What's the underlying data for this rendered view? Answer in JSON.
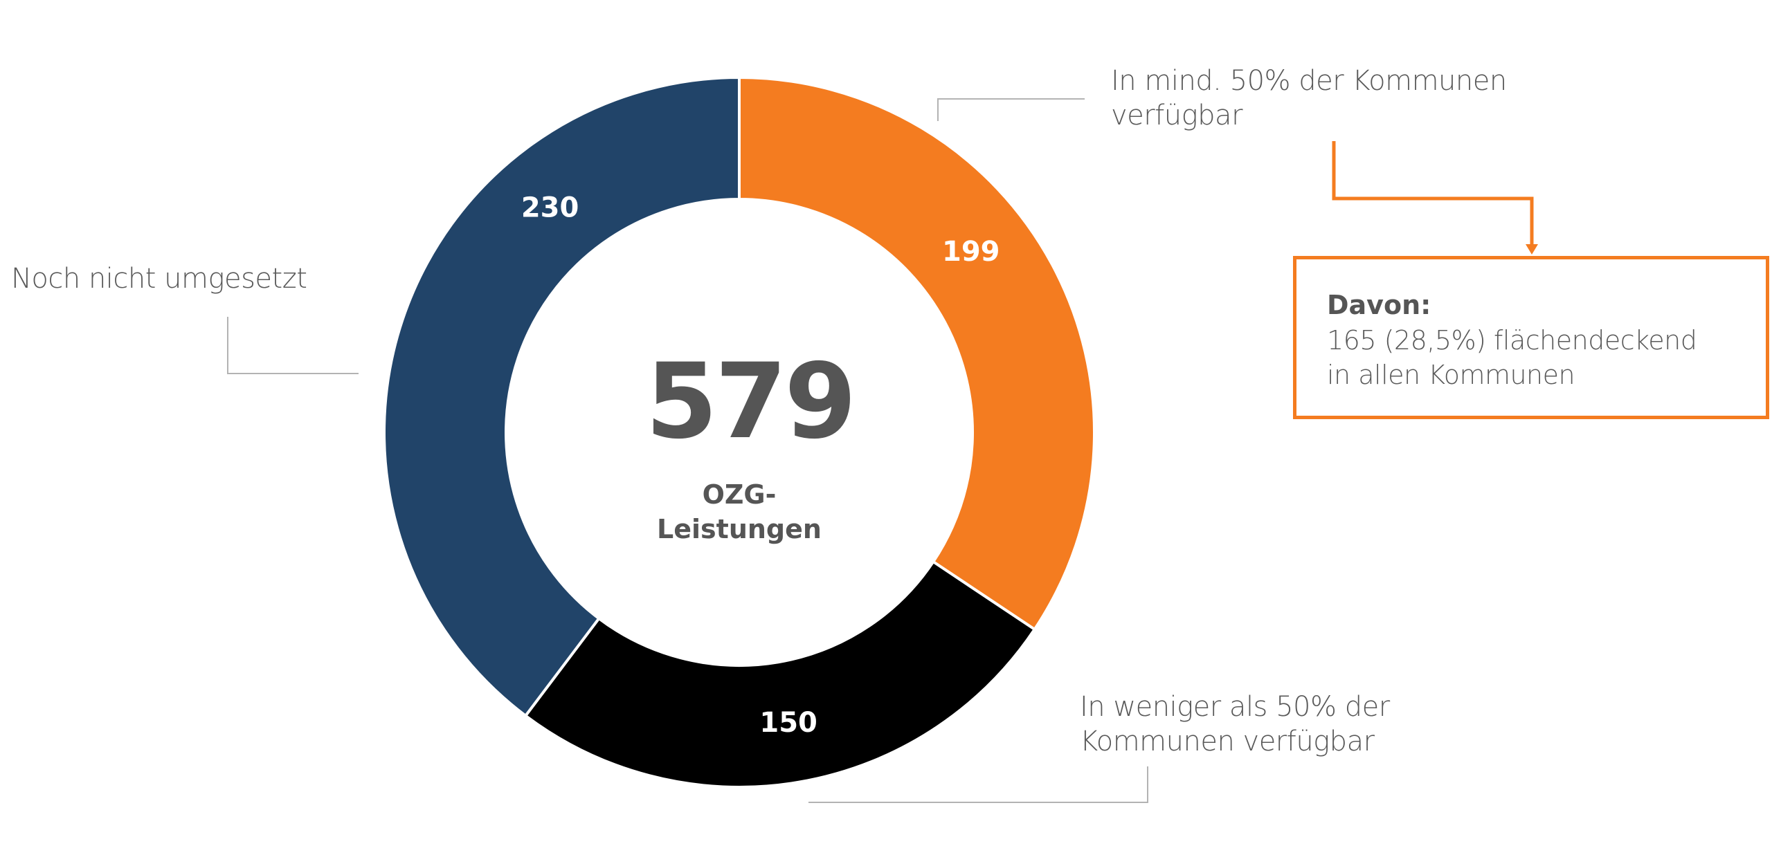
{
  "chart_data": {
    "type": "pie",
    "variant": "donut",
    "title": "",
    "total": 579,
    "center_label": {
      "value": "579",
      "subtitle_line1": "OZG-",
      "subtitle_line2": "Leistungen"
    },
    "slices": [
      {
        "name": "In mind. 50% der Kommunen verfügbar",
        "value": 199,
        "label": "199",
        "color": "#f47c20"
      },
      {
        "name": "In weniger als 50% der Kommunen verfügbar",
        "value": 150,
        "label": "150",
        "color": "#000000"
      },
      {
        "name": "Noch nicht umgesetzt",
        "value": 230,
        "label": "230",
        "color": "#214469"
      }
    ],
    "annotations": {
      "top_right_line1": "In mind. 50% der Kommunen",
      "top_right_line2": "verfügbar",
      "bottom_line1": "In weniger als 50% der",
      "bottom_line2": "Kommunen verfügbar",
      "left": "Noch nicht umgesetzt"
    },
    "callout": {
      "title": "Davon:",
      "line1": "165 (28,5%) flächendeckend",
      "line2": "in allen Kommunen",
      "color": "#f47c20"
    },
    "legend": "none",
    "start_angle": "top",
    "direction": "clockwise"
  }
}
